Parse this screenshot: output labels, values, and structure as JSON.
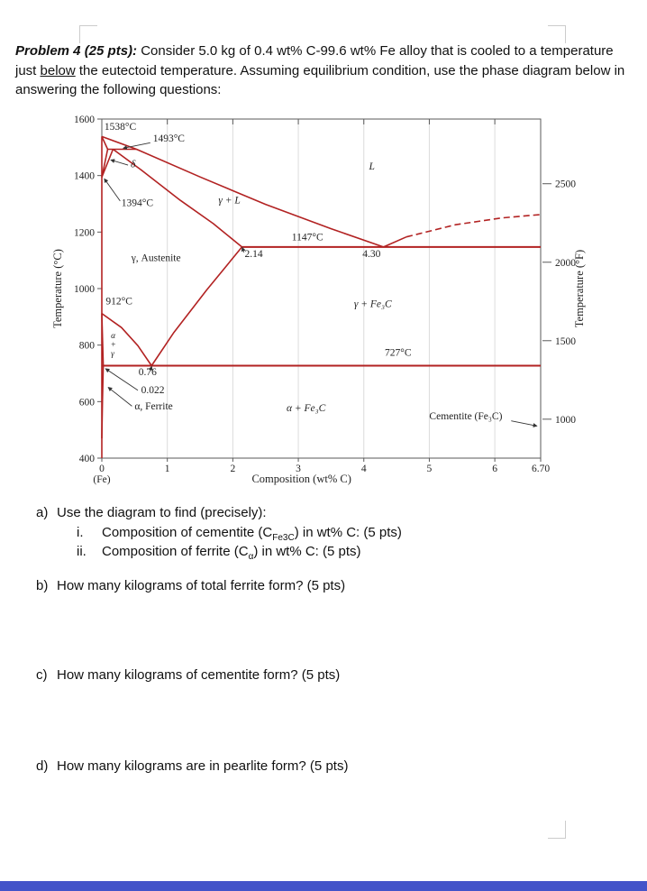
{
  "problem": {
    "label": "Problem 4 (25 pts):",
    "text_1": " Consider 5.0 kg of 0.4 wt% C-99.6 wt% Fe alloy that is cooled to a temperature just ",
    "underlined_word": "below",
    "text_2": " the eutectoid temperature.  Assuming equilibrium condition, use the phase diagram below in answering the following questions:"
  },
  "questions": {
    "a": {
      "num": "a)",
      "text": "Use the diagram to find (precisely):"
    },
    "a_i": {
      "num": "i.",
      "pre": "Composition of cementite (C",
      "sub": "Fe3C",
      "post": ") in wt% C: (5 pts)"
    },
    "a_ii": {
      "num": "ii.",
      "pre": "Composition of ferrite (C",
      "sub": "α",
      "post": ") in wt% C: (5 pts)"
    },
    "b": {
      "num": "b)",
      "text": "How many kilograms of total ferrite form? (5 pts)"
    },
    "c": {
      "num": "c)",
      "text": "How many kilograms of cementite form? (5 pts)"
    },
    "d": {
      "num": "d)",
      "text": "How many kilograms are in pearlite form? (5 pts)"
    }
  },
  "footer_bar_color": "#4353c9",
  "chart_data": {
    "type": "line",
    "title": "",
    "xlabel": "Composition (wt% C)",
    "x_origin_label": "(Fe)",
    "ylabel_left": "Temperature (°C)",
    "ylabel_right": "Temperature (°F)",
    "xlim": [
      0,
      6.7
    ],
    "ylim": [
      400,
      1600
    ],
    "grid": "vertical-only",
    "legend": "none",
    "line_color": "#b22222",
    "x_ticks": [
      {
        "v": 0,
        "label": "0"
      },
      {
        "v": 1,
        "label": "1"
      },
      {
        "v": 2,
        "label": "2"
      },
      {
        "v": 3,
        "label": "3"
      },
      {
        "v": 4,
        "label": "4"
      },
      {
        "v": 5,
        "label": "5"
      },
      {
        "v": 6,
        "label": "6"
      },
      {
        "v": 6.7,
        "label": "6.70"
      }
    ],
    "y_ticks_c": [
      {
        "v": 400,
        "label": "400"
      },
      {
        "v": 600,
        "label": "600"
      },
      {
        "v": 800,
        "label": "800"
      },
      {
        "v": 1000,
        "label": "1000"
      },
      {
        "v": 1200,
        "label": "1200"
      },
      {
        "v": 1400,
        "label": "1400"
      },
      {
        "v": 1600,
        "label": "1600"
      }
    ],
    "y_ticks_f": [
      {
        "v": 537.8,
        "label": "1000"
      },
      {
        "v": 815.6,
        "label": "1500"
      },
      {
        "v": 1093.3,
        "label": "2000"
      },
      {
        "v": 1371.1,
        "label": "2500"
      }
    ],
    "gridlines_x": [
      1,
      2,
      3,
      4,
      5,
      6
    ],
    "key_points": {
      "eutectoid": {
        "wt_pct_C": 0.76,
        "temp_C": 727
      },
      "eutectic": {
        "wt_pct_C": 4.3,
        "temp_C": 1147
      },
      "max_C_in_austenite": {
        "wt_pct_C": 2.14,
        "temp_C": 1147
      },
      "max_C_in_ferrite": {
        "wt_pct_C": 0.022,
        "temp_C": 727
      },
      "cementite_wt_pct_C": 6.7,
      "Fe_melting_temp_C": 1538,
      "peritectic_temp_C": 1493,
      "delta_to_gamma_temp_C": 1394,
      "gamma_to_alpha_temp_C": 912
    },
    "boundaries": [
      {
        "name": "pure-iron-axis",
        "dashed": false,
        "width": 1.6,
        "points": [
          [
            0,
            1538
          ],
          [
            0,
            400
          ]
        ]
      },
      {
        "name": "liquidus-hypoeutectic",
        "dashed": false,
        "width": 1.6,
        "points": [
          [
            0,
            1538
          ],
          [
            0.53,
            1493
          ],
          [
            1.5,
            1395
          ],
          [
            2.5,
            1298
          ],
          [
            3.5,
            1212
          ],
          [
            4.3,
            1147
          ]
        ]
      },
      {
        "name": "liquidus-hypereutectic-solid",
        "dashed": false,
        "width": 1.6,
        "points": [
          [
            4.3,
            1147
          ],
          [
            4.65,
            1183
          ]
        ]
      },
      {
        "name": "liquidus-hypereutectic-dashed",
        "dashed": true,
        "width": 1.6,
        "points": [
          [
            4.65,
            1183
          ],
          [
            5.4,
            1226
          ],
          [
            6.1,
            1250
          ],
          [
            6.7,
            1262
          ]
        ]
      },
      {
        "name": "eutectic-line-1147",
        "dashed": false,
        "width": 2,
        "points": [
          [
            2.14,
            1147
          ],
          [
            6.7,
            1147
          ]
        ]
      },
      {
        "name": "gamma-solidus",
        "dashed": false,
        "width": 1.6,
        "points": [
          [
            0.17,
            1493
          ],
          [
            0.6,
            1420
          ],
          [
            1.2,
            1312
          ],
          [
            1.7,
            1230
          ],
          [
            2.14,
            1147
          ]
        ]
      },
      {
        "name": "peritectic-line-1493",
        "dashed": false,
        "width": 1.6,
        "points": [
          [
            0.09,
            1493
          ],
          [
            0.53,
            1493
          ]
        ]
      },
      {
        "name": "delta-solidus",
        "dashed": false,
        "width": 1.6,
        "points": [
          [
            0,
            1538
          ],
          [
            0.09,
            1493
          ]
        ]
      },
      {
        "name": "delta-gamma-left",
        "dashed": false,
        "width": 1.6,
        "points": [
          [
            0.09,
            1493
          ],
          [
            0,
            1394
          ]
        ]
      },
      {
        "name": "delta-gamma-right",
        "dashed": false,
        "width": 1.6,
        "points": [
          [
            0.17,
            1493
          ],
          [
            0,
            1394
          ]
        ]
      },
      {
        "name": "acm",
        "dashed": false,
        "width": 1.6,
        "points": [
          [
            2.14,
            1147
          ],
          [
            1.6,
            995
          ],
          [
            1.1,
            845
          ],
          [
            0.76,
            727
          ]
        ]
      },
      {
        "name": "a3",
        "dashed": false,
        "width": 1.6,
        "points": [
          [
            0,
            912
          ],
          [
            0.3,
            862
          ],
          [
            0.55,
            798
          ],
          [
            0.76,
            727
          ]
        ]
      },
      {
        "name": "alpha-gamma-left",
        "dashed": false,
        "width": 1.6,
        "points": [
          [
            0,
            912
          ],
          [
            0.022,
            727
          ]
        ]
      },
      {
        "name": "eutectoid-line-727",
        "dashed": false,
        "width": 2,
        "points": [
          [
            0,
            727
          ],
          [
            6.7,
            727
          ]
        ]
      },
      {
        "name": "alpha-solvus",
        "dashed": false,
        "width": 1.6,
        "points": [
          [
            0.022,
            727
          ],
          [
            0.009,
            600
          ],
          [
            0,
            470
          ]
        ]
      }
    ],
    "annotations": [
      {
        "text": "1538°C",
        "c": 0.04,
        "t": 1562
      },
      {
        "text": "1493°C",
        "c": 0.78,
        "t": 1520,
        "leader": [
          [
            0.74,
            1516
          ],
          [
            0.33,
            1497
          ]
        ]
      },
      {
        "text": "δ",
        "c": 0.44,
        "t": 1430,
        "italic": true,
        "leader": [
          [
            0.4,
            1437
          ],
          [
            0.14,
            1455
          ]
        ]
      },
      {
        "text": "1394°C",
        "c": 0.3,
        "t": 1292,
        "leader": [
          [
            0.28,
            1310
          ],
          [
            0.04,
            1388
          ]
        ]
      },
      {
        "text": "γ + L",
        "c": 1.78,
        "t": 1302,
        "italic": true
      },
      {
        "text": "L",
        "c": 4.08,
        "t": 1422,
        "italic": true
      },
      {
        "text": "1147°C",
        "c": 2.9,
        "t": 1170
      },
      {
        "text": "2.14",
        "c": 2.18,
        "t": 1112,
        "leader": [
          [
            2.17,
            1128
          ],
          [
            2.145,
            1145
          ]
        ]
      },
      {
        "text": "4.30",
        "c": 3.98,
        "t": 1112
      },
      {
        "text": "γ, Austenite",
        "c": 0.45,
        "t": 1098
      },
      {
        "text": "912°C",
        "c": 0.06,
        "t": 944
      },
      {
        "text": "γ + Fe₃C",
        "c": 3.85,
        "t": 934,
        "italic": true
      },
      {
        "text": "727°C",
        "c": 4.32,
        "t": 762
      },
      {
        "text": "α",
        "c": 0.14,
        "t": 824,
        "italic": true,
        "small": true
      },
      {
        "text": "+",
        "c": 0.14,
        "t": 792,
        "small": true
      },
      {
        "text": "γ",
        "c": 0.14,
        "t": 760,
        "italic": true,
        "small": true
      },
      {
        "text": "0.76",
        "c": 0.56,
        "t": 694,
        "leader": [
          [
            0.74,
            708
          ],
          [
            0.76,
            724
          ]
        ]
      },
      {
        "text": "0.022",
        "c": 0.6,
        "t": 630,
        "leader": [
          [
            0.55,
            640
          ],
          [
            0.06,
            716
          ]
        ]
      },
      {
        "text": "α, Ferrite",
        "c": 0.5,
        "t": 572,
        "leader": [
          [
            0.46,
            584
          ],
          [
            0.1,
            650
          ]
        ]
      },
      {
        "text": "α + Fe₃C",
        "c": 2.82,
        "t": 566,
        "italic": true
      },
      {
        "text": "Cementite (Fe₃C)",
        "c": 5.0,
        "t": 538,
        "leader": [
          [
            6.25,
            532
          ],
          [
            6.64,
            514
          ]
        ]
      }
    ]
  }
}
